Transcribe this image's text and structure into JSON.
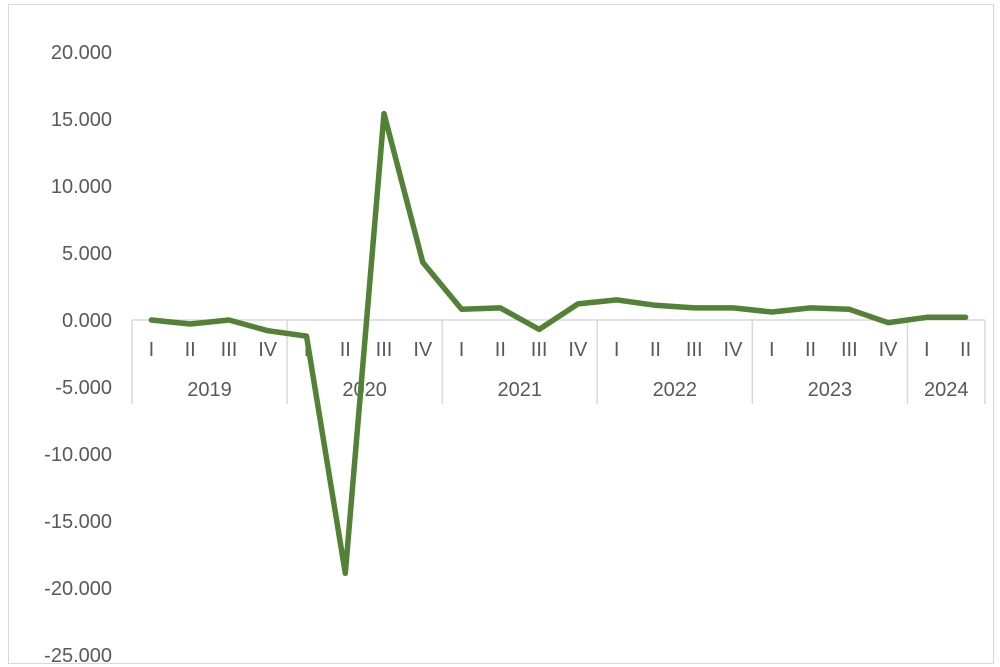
{
  "chart_data": {
    "type": "line",
    "title": "",
    "xlabel": "",
    "ylabel": "",
    "ylim": [
      -25000,
      20000
    ],
    "y_ticks": [
      20000,
      15000,
      10000,
      5000,
      0,
      -5000,
      -10000,
      -15000,
      -20000,
      -25000
    ],
    "y_tick_labels": [
      "20.000",
      "15.000",
      "10.000",
      "5.000",
      "0.000",
      "-5.000",
      "-10.000",
      "-15.000",
      "-20.000",
      "-25.000"
    ],
    "grid": false,
    "legend": "none",
    "line_color": "#538135",
    "categories": [
      "I",
      "II",
      "III",
      "IV",
      "I",
      "II",
      "III",
      "IV",
      "I",
      "II",
      "III",
      "IV",
      "I",
      "II",
      "III",
      "IV",
      "I",
      "II",
      "III",
      "IV",
      "I",
      "II"
    ],
    "years": [
      {
        "label": "2019",
        "count": 4
      },
      {
        "label": "2020",
        "count": 4
      },
      {
        "label": "2021",
        "count": 4
      },
      {
        "label": "2022",
        "count": 4
      },
      {
        "label": "2023",
        "count": 4
      },
      {
        "label": "2024",
        "count": 2
      }
    ],
    "series": [
      {
        "values": [
          0,
          -300,
          0,
          -800,
          -1200,
          -18900,
          15400,
          4300,
          800,
          900,
          -700,
          1200,
          1500,
          1100,
          900,
          900,
          600,
          900,
          800,
          -200,
          200,
          200
        ]
      }
    ]
  }
}
